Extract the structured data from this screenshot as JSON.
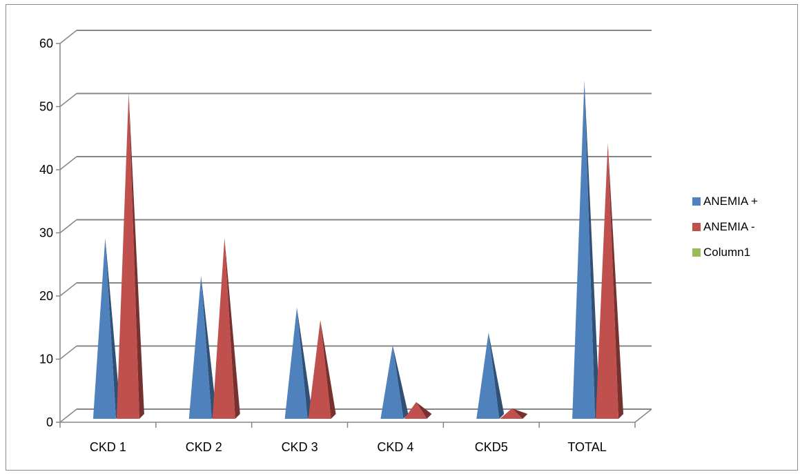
{
  "chart_data": {
    "type": "bar",
    "subtype": "3d-pyramid",
    "title": "",
    "xlabel": "",
    "ylabel": "",
    "categories": [
      "CKD 1",
      "CKD 2",
      "CKD 3",
      "CKD 4",
      "CKD5",
      "TOTAL"
    ],
    "series": [
      {
        "name": "ANEMIA +",
        "color": "#4F81BD",
        "values": [
          28,
          22,
          17,
          11,
          13,
          53
        ]
      },
      {
        "name": "ANEMIA -",
        "color": "#C0504D",
        "values": [
          51,
          28,
          15,
          2,
          1,
          43
        ]
      },
      {
        "name": "Column1",
        "color": "#9BBB59",
        "values": [
          0,
          0,
          0,
          0,
          0,
          0
        ]
      }
    ],
    "ylim": [
      0,
      60
    ],
    "yticks": [
      0,
      10,
      20,
      30,
      40,
      50,
      60
    ],
    "grid": true,
    "legend": "right"
  }
}
